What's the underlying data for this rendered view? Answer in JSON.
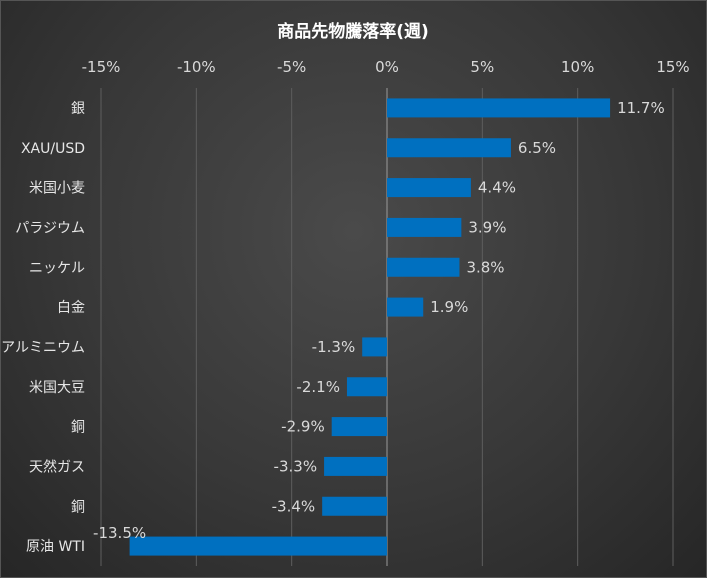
{
  "chart_data": {
    "type": "bar",
    "orientation": "horizontal",
    "title": "商品先物騰落率(週)",
    "xlim": [
      -15,
      15
    ],
    "x_ticks": [
      -15,
      -10,
      -5,
      0,
      5,
      10,
      15
    ],
    "x_tick_labels": [
      "-15%",
      "-10%",
      "-5%",
      "0%",
      "5%",
      "10%",
      "15%"
    ],
    "grid": true,
    "bar_color": "#0070C0",
    "categories": [
      "銀",
      "XAU/USD",
      "米国小麦",
      "パラジウム",
      "ニッケル",
      "白金",
      "アルミニウム",
      "米国大豆",
      "銅",
      "天然ガス",
      "銅",
      "原油 WTI"
    ],
    "values": [
      11.7,
      6.5,
      4.4,
      3.9,
      3.8,
      1.9,
      -1.3,
      -2.1,
      -2.9,
      -3.3,
      -3.4,
      -13.5
    ],
    "data_labels": [
      "11.7%",
      "6.5%",
      "4.4%",
      "3.9%",
      "3.8%",
      "1.9%",
      "-1.3%",
      "-2.1%",
      "-2.9%",
      "-3.3%",
      "-3.4%",
      "-13.5%"
    ]
  }
}
